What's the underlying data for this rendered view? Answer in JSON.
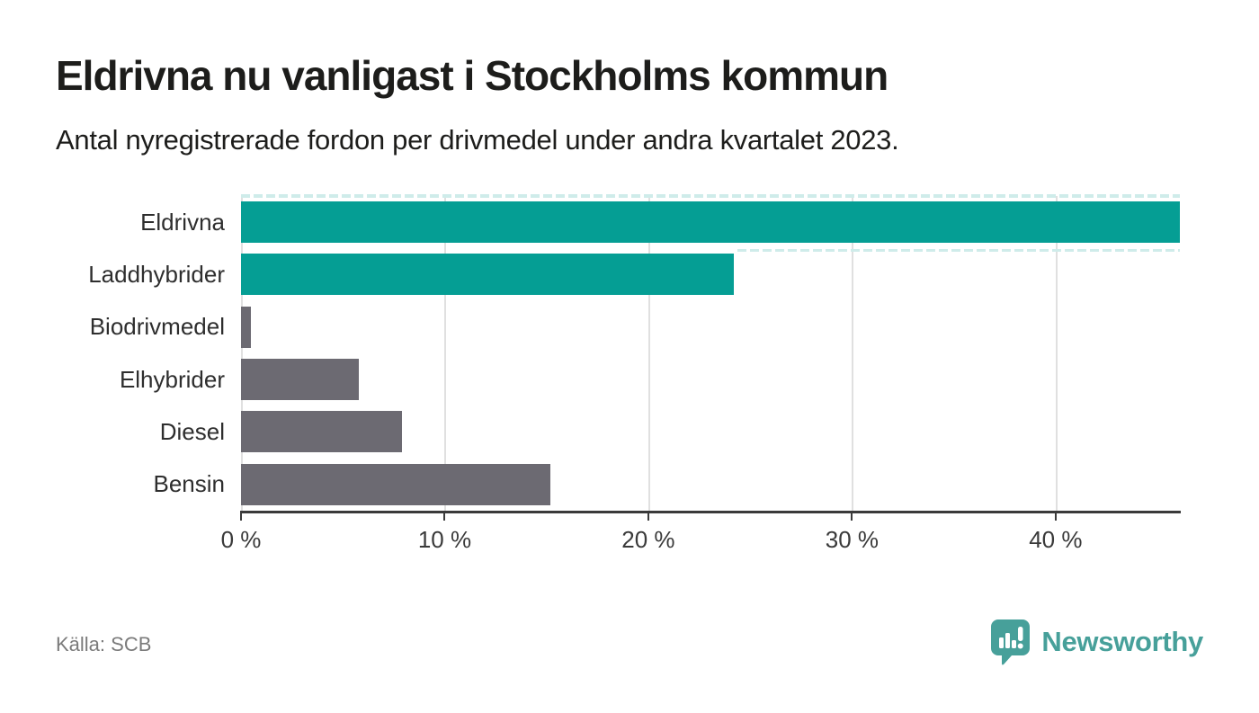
{
  "header": {
    "title": "Eldrivna nu vanligast i Stockholms kommun",
    "subtitle": "Antal nyregistrerade fordon per drivmedel under andra kvartalet 2023."
  },
  "footer": {
    "source": "Källa: SCB",
    "brand_name": "Newsworthy"
  },
  "colors": {
    "highlight_bar": "#059e94",
    "default_bar": "#6c6a72",
    "dashed_guide": "#cfecea",
    "gridline": "#e0e0e0",
    "axis": "#3a3a3a",
    "brand_teal": "#47a09a",
    "source_text": "#7b7b7b"
  },
  "chart_data": {
    "type": "bar",
    "orientation": "horizontal",
    "title": "Eldrivna nu vanligast i Stockholms kommun",
    "subtitle": "Antal nyregistrerade fordon per drivmedel under andra kvartalet 2023.",
    "categories": [
      "Eldrivna",
      "Laddhybrider",
      "Biodrivmedel",
      "Elhybrider",
      "Diesel",
      "Bensin"
    ],
    "values": [
      46.1,
      24.2,
      0.5,
      5.8,
      7.9,
      15.2
    ],
    "unit": "%",
    "bar_colors": [
      "#059e94",
      "#059e94",
      "#6c6a72",
      "#6c6a72",
      "#6c6a72",
      "#6c6a72"
    ],
    "xlabel": "",
    "ylabel": "",
    "xlim": [
      0,
      46.1
    ],
    "xticks": [
      0,
      10,
      20,
      30,
      40
    ],
    "xtick_labels": [
      "0 %",
      "10 %",
      "20 %",
      "30 %",
      "40 %"
    ],
    "grid": "vertical",
    "legend": "none"
  }
}
